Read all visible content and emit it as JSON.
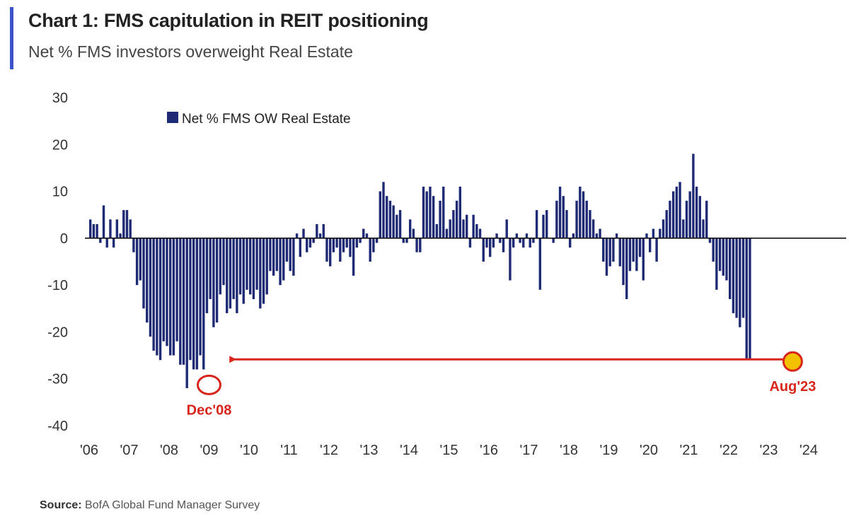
{
  "title": "Chart 1: FMS capitulation in REIT positioning",
  "subtitle": "Net % FMS investors overweight Real Estate",
  "source_label": "Source:",
  "source_text": "BofA Global Fund Manager Survey",
  "colors": {
    "bar": "#1f2a75",
    "annotation": "#d8261c",
    "marker_fill": "#f2c200",
    "title_accent": "#3b55c9"
  },
  "chart_data": {
    "type": "bar",
    "title": "Chart 1: FMS capitulation in REIT positioning",
    "subtitle": "Net % FMS investors overweight Real Estate",
    "xlabel": "",
    "ylabel": "",
    "ylim": [
      -40,
      30
    ],
    "yticks": [
      30,
      20,
      10,
      0,
      -10,
      -20,
      -30,
      -40
    ],
    "xticks": [
      "'06",
      "'07",
      "'08",
      "'09",
      "'10",
      "'11",
      "'12",
      "'13",
      "'14",
      "'15",
      "'16",
      "'17",
      "'18",
      "'19",
      "'20",
      "'21",
      "'22",
      "'23",
      "'24"
    ],
    "grid": false,
    "legend": {
      "position": "top-left",
      "entries": [
        "Net % FMS OW Real Estate"
      ]
    },
    "series": [
      {
        "name": "Net % FMS OW Real Estate",
        "x_start": 2006.0,
        "x_step": 0.0833333,
        "values": [
          4,
          3,
          3,
          -1,
          7,
          -2,
          4,
          -2,
          4,
          1,
          6,
          6,
          4,
          -3,
          -10,
          -9,
          -15,
          -18,
          -21,
          -24,
          -25,
          -26,
          -22,
          -23,
          -25,
          -25,
          -22,
          -27,
          -27,
          -32,
          -26,
          -28,
          -28,
          -25,
          -28,
          -16,
          -13,
          -19,
          -18,
          -12,
          -10,
          -16,
          -15,
          -13,
          -16,
          -12,
          -14,
          -11,
          -12,
          -13,
          -11,
          -15,
          -14,
          -12,
          -7,
          -8,
          -7,
          -10,
          -9,
          -5,
          -7,
          -8,
          1,
          -4,
          2,
          -3,
          -2,
          -1,
          3,
          1,
          3,
          -5,
          -6,
          -3,
          -2,
          -5,
          -3,
          -2,
          -4,
          -8,
          -2,
          -1,
          2,
          1,
          -5,
          -3,
          -1,
          10,
          12,
          9,
          8,
          7,
          5,
          6,
          -1,
          -1,
          4,
          2,
          -3,
          -3,
          11,
          10,
          11,
          9,
          3,
          8,
          11,
          2,
          4,
          6,
          8,
          11,
          4,
          5,
          -2,
          5,
          3,
          2,
          -5,
          -2,
          -4,
          -2,
          1,
          -1,
          -3,
          4,
          -9,
          -2,
          1,
          -1,
          -2,
          1,
          -2,
          -1,
          6,
          -11,
          5,
          6,
          0,
          -1,
          8,
          11,
          9,
          6,
          -2,
          1,
          8,
          11,
          10,
          8,
          6,
          4,
          1,
          2,
          -5,
          -8,
          -6,
          -5,
          1,
          -6,
          -10,
          -13,
          -7,
          -5,
          -7,
          -4,
          -9,
          1,
          -3,
          2,
          -5,
          2,
          4,
          6,
          8,
          10,
          11,
          12,
          4,
          8,
          10,
          18,
          11,
          9,
          4,
          8,
          -1,
          -5,
          -11,
          -7,
          -8,
          -9,
          -13,
          -16,
          -17,
          -19,
          -17,
          -26,
          -26
        ]
      }
    ],
    "annotations": [
      {
        "label": "Dec'08",
        "x": 2009.0,
        "y": -31
      },
      {
        "label": "Aug'23",
        "x": 2023.6,
        "y": -26
      }
    ]
  }
}
